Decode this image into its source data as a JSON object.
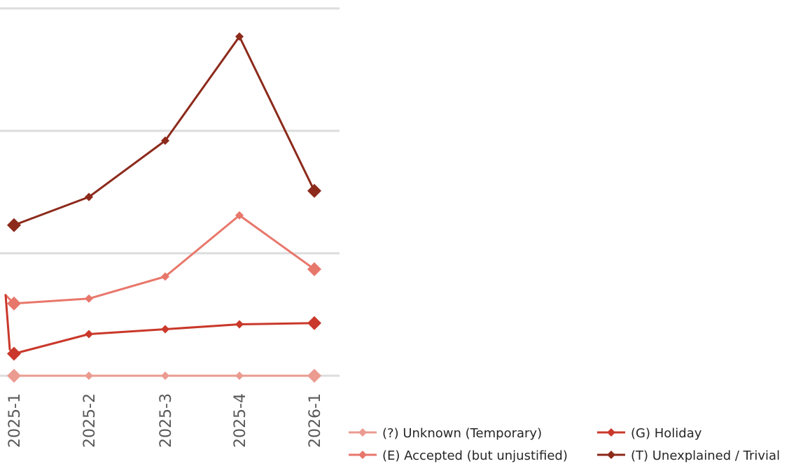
{
  "chart_data": {
    "type": "line",
    "categories": [
      "2025-1",
      "2025-2",
      "2025-3",
      "2025-4",
      "2026-1"
    ],
    "grid": true,
    "legend_position": "bottom-right",
    "series": [
      {
        "name": "(?) Unknown (Temporary)",
        "color": "#eb9b90",
        "values": [
          0,
          0,
          0,
          0,
          0
        ]
      },
      {
        "name": "(E) Accepted (but unjustified)",
        "color": "#e8776b",
        "values": [
          0.59,
          0.63,
          0.81,
          1.31,
          0.87
        ]
      },
      {
        "name": "(G) Holiday",
        "color": "#c9382a",
        "values": [
          0.18,
          0.34,
          0.38,
          0.42,
          0.43
        ]
      },
      {
        "name": "(T) Unexplained / Trivial",
        "color": "#8c2a1b",
        "values": [
          1.23,
          1.46,
          1.92,
          2.77,
          1.51
        ]
      }
    ],
    "ylim": [
      0,
      3
    ]
  }
}
